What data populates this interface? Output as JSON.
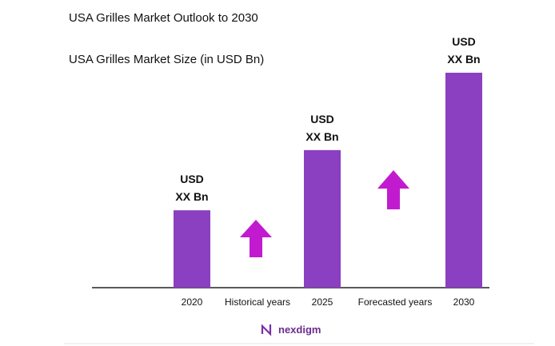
{
  "title": "USA Grilles Market Outlook to 2030",
  "chart_data": {
    "type": "bar",
    "title": "USA Grilles Market Size (in USD Bn)",
    "categories": [
      "2020",
      "2025",
      "2030"
    ],
    "values": [
      36,
      64,
      100
    ],
    "value_labels": [
      "USD XX Bn",
      "USD XX Bn",
      "USD XX Bn"
    ],
    "color": "#8a40c0",
    "annotations": [
      "Historical years",
      "Forecasted years"
    ]
  },
  "logo": "nexdigm"
}
